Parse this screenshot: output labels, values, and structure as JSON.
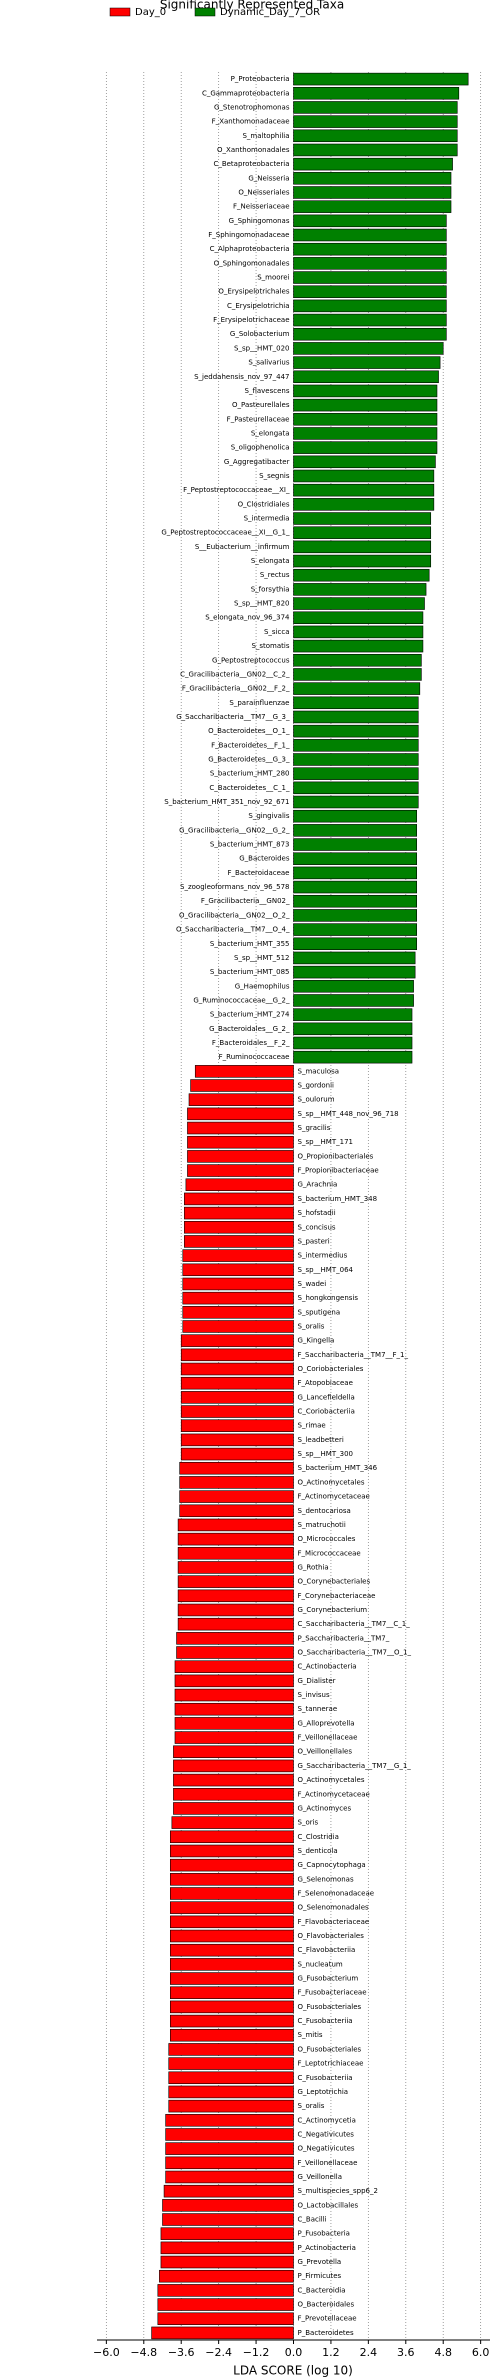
{
  "chart_data": {
    "type": "barh",
    "title": "Significantly Represented Taxa",
    "xlabel": "LDA SCORE (log 10)",
    "xlim": [
      -6.3,
      6.3
    ],
    "xticks": [
      {
        "value": -6,
        "label": "−6.0"
      },
      {
        "value": -4.8,
        "label": "−4.8"
      },
      {
        "value": -3.6,
        "label": "−3.6"
      },
      {
        "value": -2.4,
        "label": "−2.4"
      },
      {
        "value": -1.2,
        "label": "−1.2"
      },
      {
        "value": 0,
        "label": "0.0"
      },
      {
        "value": 1.2,
        "label": "1.2"
      },
      {
        "value": 2.4,
        "label": "2.4"
      },
      {
        "value": 3.6,
        "label": "3.6"
      },
      {
        "value": 4.8,
        "label": "4.8"
      },
      {
        "value": 6,
        "label": "6.0"
      }
    ],
    "grid": true,
    "categories": [
      "P_Proteobacteria",
      "C_Gammaproteobacteria",
      "G_Stenotrophomonas",
      "F_Xanthomonadaceae",
      "S_maltophilia",
      "O_Xanthomonadales",
      "C_Betaproteobacteria",
      "G_Neisseria",
      "O_Neisseriales",
      "F_Neisseriaceae",
      "G_Sphingomonas",
      "F_Sphingomonadaceae",
      "C_Alphaproteobacteria",
      "O_Sphingomonadales",
      "S_moorei",
      "O_Erysipelotrichales",
      "C_Erysipelotrichia",
      "F_Erysipelotrichaceae",
      "G_Solobacterium",
      "S_sp__HMT_020",
      "S_salivarius",
      "S_jeddahensis_nov_97_447",
      "S_flavescens",
      "O_Pasteurellales",
      "F_Pasteurellaceae",
      "S_elongata",
      "S_oligophenolica",
      "G_Aggregatibacter",
      "S_segnis",
      "F_Peptostreptococcaceae__XI_",
      "O_Clostridiales",
      "S_intermedia",
      "G_Peptostreptococcaceae__XI__G_1_",
      "S__Eubacterium__infirmum",
      "S_elongata",
      "S_rectus",
      "S_forsythia",
      "S_sp__HMT_820",
      "S_elongata_nov_96_374",
      "S_sicca",
      "S_stomatis",
      "G_Peptostreptococcus",
      "C_Gracilibacteria__GN02__C_2_",
      "F_Gracilibacteria__GN02__F_2_",
      "S_parainfluenzae",
      "G_Saccharibacteria__TM7__G_3_",
      "O_Bacteroidetes__O_1_",
      "F_Bacteroidetes__F_1_",
      "G_Bacteroidetes__G_3_",
      "S_bacterium_HMT_280",
      "C_Bacteroidetes__C_1_",
      "S_bacterium_HMT_351_nov_92_671",
      "S_gingivalis",
      "G_Gracilibacteria__GN02__G_2_",
      "S_bacterium_HMT_873",
      "G_Bacteroides",
      "F_Bacteroidaceae",
      "S_zoogleoformans_nov_96_578",
      "F_Gracilibacteria__GN02_",
      "O_Gracilibacteria__GN02__O_2_",
      "O_Saccharibacteria__TM7__O_4_",
      "S_bacterium_HMT_355",
      "S_sp__HMT_512",
      "S_bacterium_HMT_085",
      "G_Haemophilus",
      "G_Ruminococcaceae__G_2_",
      "S_bacterium_HMT_274",
      "G_Bacteroidales__G_2_",
      "F_Bacteroidales__F_2_",
      "F_Ruminococcaceae",
      "S_maculosa",
      "S_gordonii",
      "S_oulorum",
      "S_sp__HMT_448_nov_96_718",
      "S_gracilis",
      "S_sp__HMT_171",
      "O_Propionibacteriales",
      "F_Propionibacteriaceae",
      "G_Arachnia",
      "S_bacterium_HMT_348",
      "S_hofstadii",
      "S_concisus",
      "S_pasteri",
      "S_intermedius",
      "S_sp__HMT_064",
      "S_wadei",
      "S_hongkongensis",
      "S_sputigena",
      "S_oralis",
      "G_Kingella",
      "F_Saccharibacteria__TM7__F_1_",
      "O_Coriobacteriales",
      "F_Atopobiaceae",
      "G_Lancefieldella",
      "C_Coriobacteriia",
      "S_rimae",
      "S_leadbetteri",
      "S_sp__HMT_300",
      "S_bacterium_HMT_346",
      "O_Actinomycetales",
      "F_Actinomycetaceae",
      "S_dentocariosa",
      "S_matruchotii",
      "O_Micrococcales",
      "F_Micrococcaceae",
      "G_Rothia",
      "O_Corynebacteriales",
      "F_Corynebacteriaceae",
      "G_Corynebacterium",
      "C_Saccharibacteria__TM7__C_1_",
      "P_Saccharibacteria__TM7_",
      "O_Saccharibacteria__TM7__O_1_",
      "C_Actinobacteria",
      "G_Dialister",
      "S_invisus",
      "S_tannerae",
      "G_Alloprevotella",
      "F_Veillonellaceae",
      "O_Veillonellales",
      "G_Saccharibacteria__TM7__G_1_",
      "O_Actinomycetales",
      "F_Actinomycetaceae",
      "G_Actinomyces",
      "S_oris",
      "C_Clostridia",
      "S_denticola",
      "G_Capnocytophaga",
      "G_Selenomonas",
      "F_Selenomonadaceae",
      "O_Selenomonadales",
      "F_Flavobacteriaceae",
      "O_Flavobacteriales",
      "C_Flavobacteriia",
      "S_nucleatum",
      "G_Fusobacterium",
      "F_Fusobacteriaceae",
      "O_Fusobacteriales",
      "C_Fusobacteriia",
      "S_mitis",
      "O_Fusobacteriales",
      "F_Leptotrichiaceae",
      "C_Fusobacteriia",
      "G_Leptotrichia",
      "S_oralis",
      "C_Actinomycetia",
      "C_Negativicutes",
      "O_Negativicutes",
      "F_Veillonellaceae",
      "G_Veillonella",
      "S_multispecies_spp6_2",
      "O_Lactobacillales",
      "C_Bacilli",
      "P_Fusobacteria",
      "P_Actinobacteria",
      "G_Prevotella",
      "P_Firmicutes",
      "C_Bacteroidia",
      "O_Bacteroidales",
      "F_Prevotellaceae",
      "P_Bacteroidetes"
    ],
    "series": [
      {
        "name": "Day_0",
        "color": "#ff0000",
        "values": [
          null,
          null,
          null,
          null,
          null,
          null,
          null,
          null,
          null,
          null,
          null,
          null,
          null,
          null,
          null,
          null,
          null,
          null,
          null,
          null,
          null,
          null,
          null,
          null,
          null,
          null,
          null,
          null,
          null,
          null,
          null,
          null,
          null,
          null,
          null,
          null,
          null,
          null,
          null,
          null,
          null,
          null,
          null,
          null,
          null,
          null,
          null,
          null,
          null,
          null,
          null,
          null,
          null,
          null,
          null,
          null,
          null,
          null,
          null,
          null,
          null,
          null,
          null,
          null,
          null,
          null,
          null,
          null,
          null,
          null,
          -3.15,
          -3.3,
          -3.35,
          -3.4,
          -3.4,
          -3.4,
          -3.4,
          -3.4,
          -3.45,
          -3.5,
          -3.5,
          -3.5,
          -3.5,
          -3.55,
          -3.55,
          -3.55,
          -3.55,
          -3.55,
          -3.55,
          -3.6,
          -3.6,
          -3.6,
          -3.6,
          -3.6,
          -3.6,
          -3.6,
          -3.6,
          -3.6,
          -3.65,
          -3.65,
          -3.65,
          -3.65,
          -3.7,
          -3.7,
          -3.7,
          -3.7,
          -3.7,
          -3.7,
          -3.7,
          -3.7,
          -3.75,
          -3.75,
          -3.8,
          -3.8,
          -3.8,
          -3.8,
          -3.8,
          -3.8,
          -3.85,
          -3.85,
          -3.85,
          -3.85,
          -3.85,
          -3.9,
          -3.95,
          -3.95,
          -3.95,
          -3.95,
          -3.95,
          -3.95,
          -3.95,
          -3.95,
          -3.95,
          -3.95,
          -3.95,
          -3.95,
          -3.95,
          -3.95,
          -3.95,
          -4.0,
          -4.0,
          -4.0,
          -4.0,
          -4.0,
          -4.1,
          -4.1,
          -4.1,
          -4.1,
          -4.1,
          -4.15,
          -4.2,
          -4.2,
          -4.25,
          -4.25,
          -4.25,
          -4.3,
          -4.35,
          -4.35,
          -4.35,
          -4.55
        ]
      },
      {
        "name": "Dynamic_Day_7_OR",
        "color": "#008000",
        "values": [
          5.6,
          5.3,
          5.25,
          5.25,
          5.25,
          5.25,
          5.1,
          5.05,
          5.05,
          5.05,
          4.9,
          4.9,
          4.9,
          4.9,
          4.9,
          4.9,
          4.9,
          4.9,
          4.9,
          4.8,
          4.7,
          4.65,
          4.6,
          4.6,
          4.6,
          4.6,
          4.6,
          4.55,
          4.5,
          4.5,
          4.5,
          4.4,
          4.4,
          4.4,
          4.4,
          4.35,
          4.25,
          4.2,
          4.15,
          4.15,
          4.15,
          4.1,
          4.1,
          4.05,
          4.0,
          4.0,
          4.0,
          4.0,
          4.0,
          4.0,
          4.0,
          4.0,
          3.95,
          3.95,
          3.95,
          3.95,
          3.95,
          3.95,
          3.95,
          3.95,
          3.95,
          3.95,
          3.9,
          3.9,
          3.85,
          3.85,
          3.8,
          3.8,
          3.8,
          3.8,
          null,
          null,
          null,
          null,
          null,
          null,
          null,
          null,
          null,
          null,
          null,
          null,
          null,
          null,
          null,
          null,
          null,
          null,
          null,
          null,
          null,
          null,
          null,
          null,
          null,
          null,
          null,
          null,
          null,
          null,
          null,
          null,
          null,
          null,
          null,
          null,
          null,
          null,
          null,
          null,
          null,
          null,
          null,
          null,
          null,
          null,
          null,
          null,
          null,
          null,
          null,
          null,
          null,
          null,
          null,
          null,
          null,
          null,
          null,
          null,
          null,
          null,
          null,
          null,
          null,
          null,
          null,
          null,
          null,
          null,
          null,
          null,
          null,
          null,
          null,
          null,
          null,
          null,
          null,
          null,
          null,
          null,
          null,
          null,
          null,
          null,
          null,
          null,
          null,
          null
        ]
      }
    ]
  }
}
